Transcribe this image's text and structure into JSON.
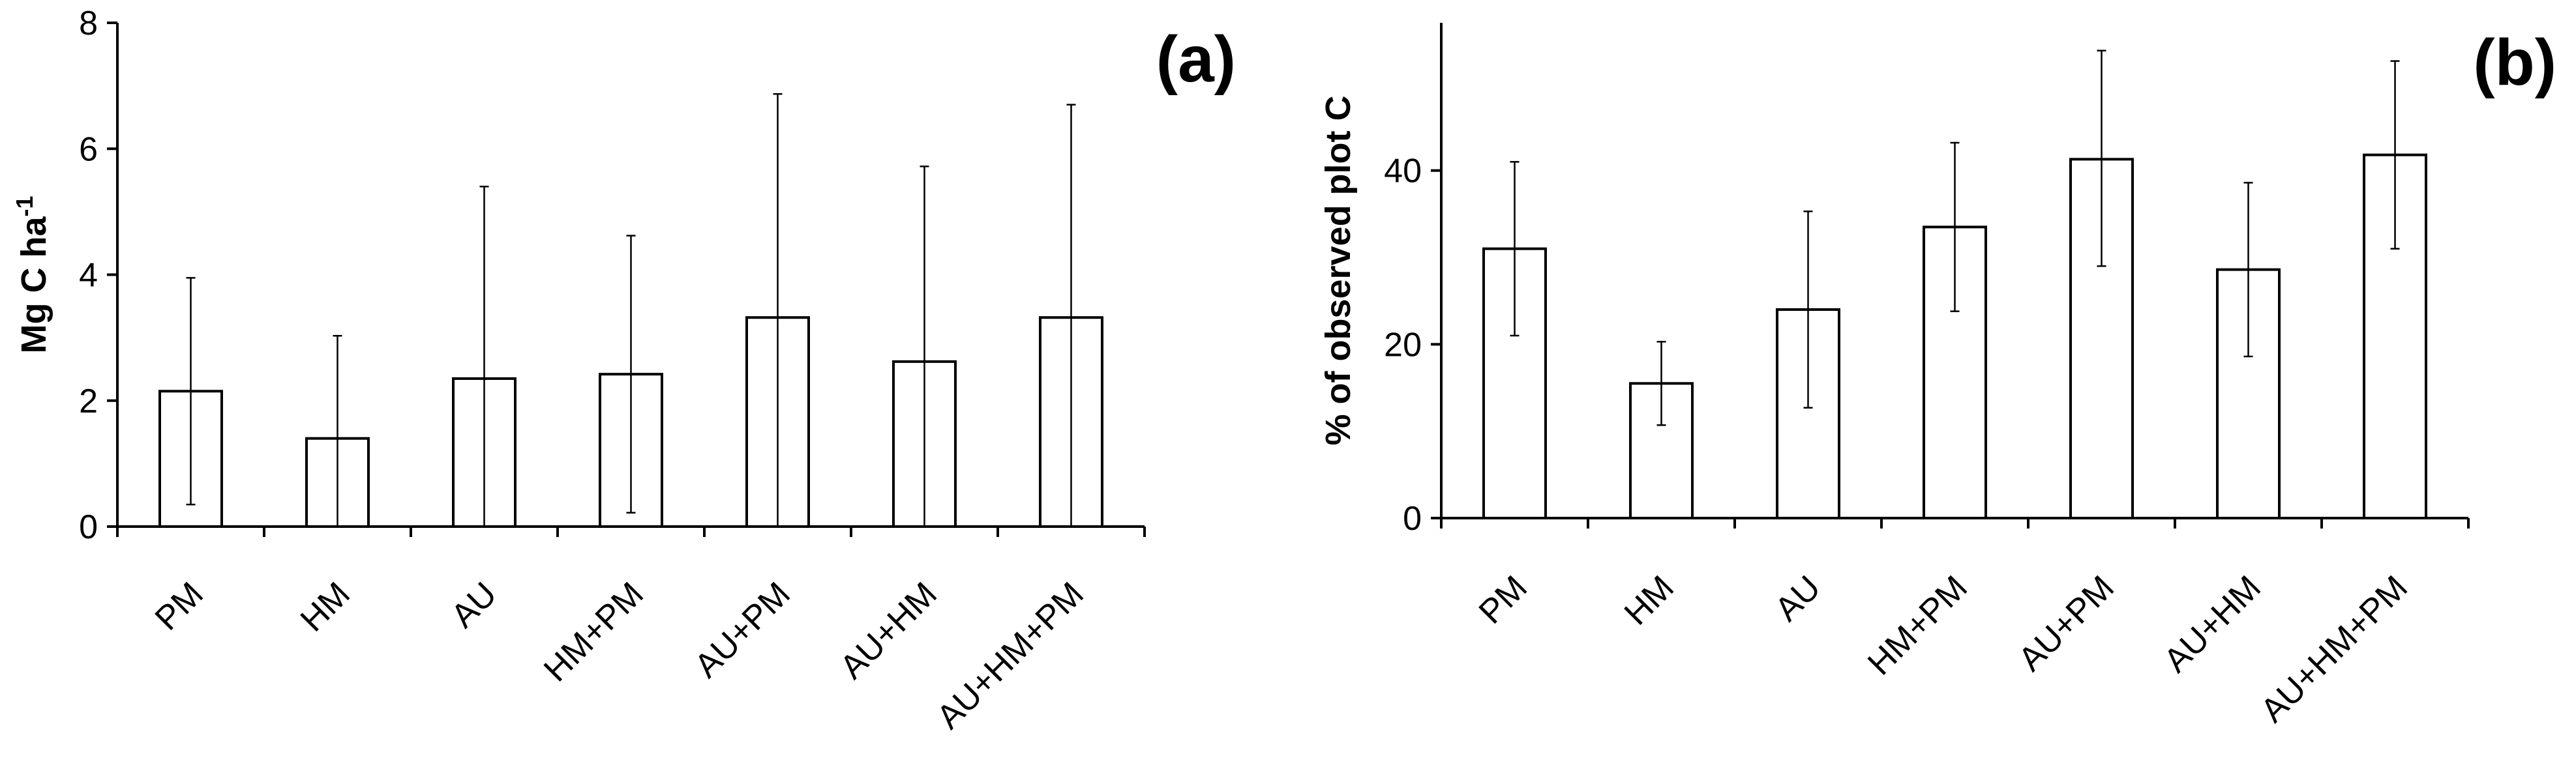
{
  "chart_data": [
    {
      "type": "bar",
      "panel_label": "(a)",
      "ylabel_main": "Mg C ha",
      "ylabel_sup": "-1",
      "ylim": [
        0,
        8
      ],
      "yticks": [
        0,
        2,
        4,
        6,
        8
      ],
      "categories": [
        "PM",
        "HM",
        "AU",
        "HM+PM",
        "AU+PM",
        "AU+HM",
        "AU+HM+PM"
      ],
      "values": [
        2.15,
        1.4,
        2.35,
        2.42,
        3.32,
        2.62,
        3.32
      ],
      "error_upper": [
        3.95,
        3.03,
        5.4,
        4.62,
        6.87,
        5.72,
        6.7
      ],
      "error_lower": [
        0.35,
        0,
        0,
        0.22,
        0,
        0,
        0
      ],
      "y_axis_side": "left",
      "grid": false,
      "bar_color": "#ffffff"
    },
    {
      "type": "bar",
      "panel_label": "(b)",
      "ylabel_main": "% of observed plot C",
      "ylabel_sup": "",
      "ylim": [
        0,
        57
      ],
      "yticks": [
        0,
        20,
        40
      ],
      "categories": [
        "PM",
        "HM",
        "AU",
        "HM+PM",
        "AU+PM",
        "AU+HM",
        "AU+HM+PM"
      ],
      "values": [
        31,
        15.5,
        24,
        33.5,
        41.3,
        28.6,
        41.8
      ],
      "error_upper": [
        41,
        20.3,
        35.3,
        43.2,
        53.8,
        38.6,
        52.6
      ],
      "error_lower": [
        21,
        10.7,
        12.7,
        23.8,
        29,
        18.6,
        31
      ],
      "y_axis_side": "left",
      "grid": false,
      "bar_color": "#ffffff"
    }
  ]
}
